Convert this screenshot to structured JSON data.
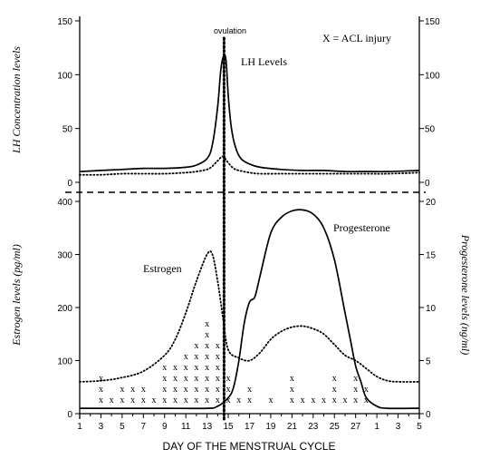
{
  "chart_data": [
    {
      "panel": "top",
      "type": "line",
      "ylabel": "LH Concentration levels",
      "ylim": [
        0,
        150
      ],
      "yticks": [
        "0",
        "50",
        "100",
        "150"
      ],
      "right_yticks": [
        "0",
        "50",
        "100",
        "150"
      ],
      "series": [
        {
          "name": "LH Levels",
          "style": "solid",
          "x": [
            1,
            3,
            5,
            7,
            9,
            11,
            12,
            13,
            13.5,
            14,
            14.3,
            14.6,
            14.8,
            15,
            15.3,
            15.7,
            16.2,
            17,
            18,
            20,
            22,
            24,
            26,
            28,
            30,
            33
          ],
          "y": [
            10,
            11,
            12,
            13,
            13,
            14,
            16,
            22,
            35,
            70,
            105,
            118,
            112,
            80,
            50,
            32,
            22,
            17,
            14,
            12,
            11,
            11,
            10,
            10,
            10,
            11
          ]
        },
        {
          "name": "",
          "style": "dotted",
          "x": [
            1,
            3,
            5,
            7,
            9,
            11,
            12,
            13,
            13.5,
            14,
            14.5,
            15,
            15.5,
            16,
            17,
            18,
            20,
            22,
            24,
            26,
            28,
            30,
            33
          ],
          "y": [
            7,
            7,
            8,
            8,
            8,
            9,
            10,
            12,
            15,
            20,
            24,
            18,
            13,
            11,
            9,
            8,
            8,
            8,
            8,
            8,
            8,
            8,
            9
          ]
        }
      ],
      "annotations": [
        "ovulation",
        "X = ACL injury"
      ]
    },
    {
      "panel": "bottom",
      "type": "line",
      "xlabel": "DAY OF THE MENSTRUAL CYCLE",
      "ylabel": "Estrogen levels (pg/ml)",
      "ylabel_right": "Progesterone levels (ng/ml)",
      "ylim": [
        0,
        400
      ],
      "ylim_right": [
        0,
        20
      ],
      "yticks": [
        "0",
        "100",
        "200",
        "300",
        "400"
      ],
      "right_yticks": [
        "0",
        "5",
        "10",
        "15",
        "20"
      ],
      "xticks": [
        "1",
        "3",
        "5",
        "7",
        "9",
        "11",
        "13",
        "15",
        "17",
        "19",
        "21",
        "23",
        "25",
        "27",
        "1",
        "3",
        "5"
      ],
      "series": [
        {
          "name": "Estrogen",
          "style": "dotted",
          "x": [
            1,
            3,
            5,
            7,
            9,
            10,
            11,
            12,
            13,
            13.5,
            14,
            14.5,
            15,
            16,
            17,
            18,
            19,
            20,
            21,
            22,
            23,
            24,
            25,
            26,
            27,
            28,
            29,
            30,
            31,
            33
          ],
          "y": [
            60,
            62,
            68,
            80,
            110,
            140,
            190,
            250,
            300,
            300,
            250,
            180,
            120,
            105,
            100,
            115,
            140,
            155,
            163,
            165,
            160,
            150,
            130,
            110,
            100,
            85,
            70,
            62,
            60,
            60
          ]
        },
        {
          "name": "Progesterone",
          "style": "solid",
          "x": [
            1,
            5,
            9,
            13,
            14,
            15,
            15.5,
            16,
            16.5,
            17,
            17.5,
            18,
            19,
            20,
            21,
            22,
            23,
            24,
            25,
            26,
            26.5,
            27,
            27.5,
            28,
            29,
            30,
            33
          ],
          "y": [
            0.5,
            0.5,
            0.5,
            0.5,
            0.7,
            1.5,
            2.5,
            5,
            8.5,
            10.5,
            11,
            13,
            17,
            18.5,
            19.1,
            19.2,
            18.8,
            17.5,
            14.5,
            9.5,
            7,
            4.5,
            3,
            1.5,
            0.7,
            0.5,
            0.5
          ]
        }
      ],
      "acl_injury_counts": {
        "marker": "x",
        "days": [
          3,
          4,
          5,
          6,
          7,
          8,
          9,
          10,
          11,
          12,
          13,
          14,
          15,
          16,
          17,
          19,
          21,
          22,
          23,
          24,
          25,
          26,
          27,
          28
        ],
        "counts": [
          3,
          1,
          2,
          2,
          2,
          1,
          4,
          4,
          5,
          6,
          8,
          6,
          3,
          1,
          2,
          1,
          3,
          1,
          1,
          1,
          3,
          1,
          3,
          2
        ]
      }
    }
  ]
}
